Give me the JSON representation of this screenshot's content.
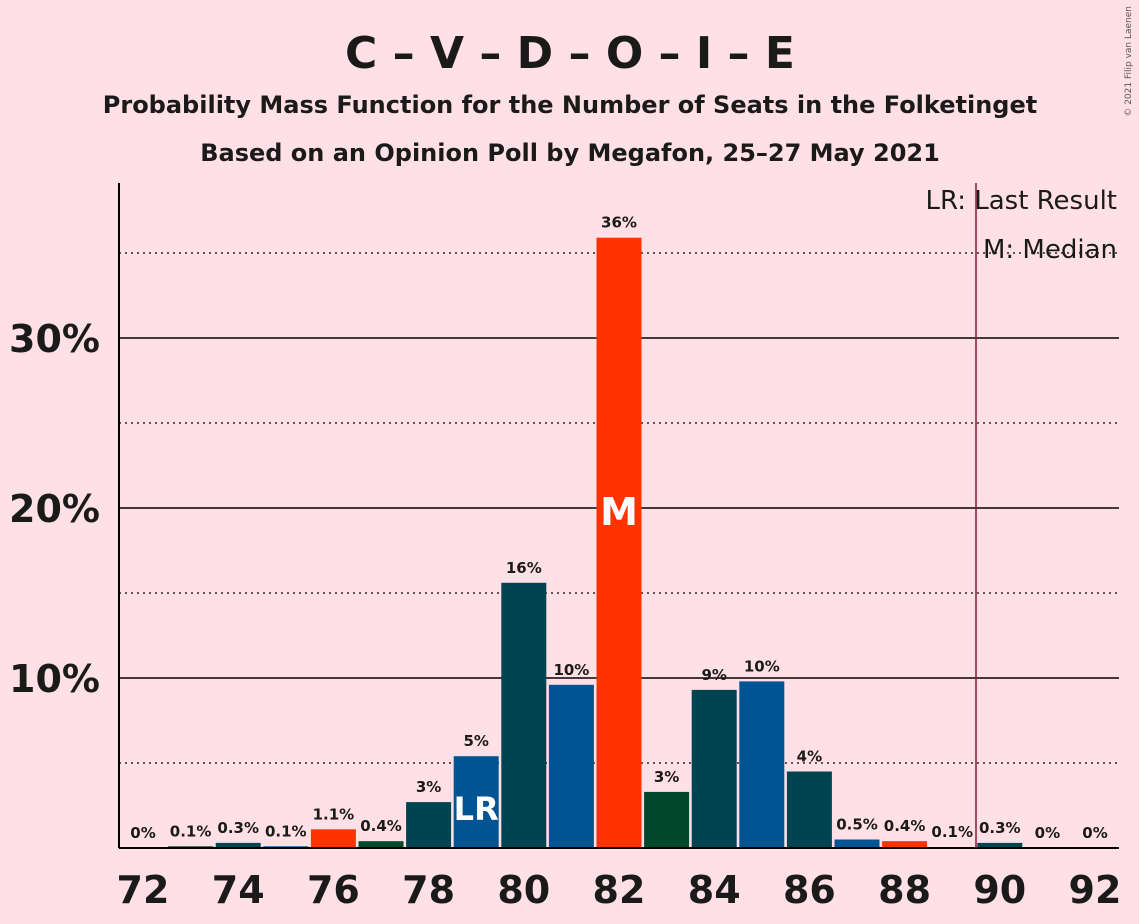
{
  "chart_data": {
    "type": "bar",
    "title": "C – V – D – O – I – E",
    "subtitle": "Probability Mass Function for the Number of Seats in the Folketinget",
    "subtitle2": "Based on an Opinion Poll by Megafon, 25–27 May 2021",
    "copyright": "© 2021 Filip van Laenen",
    "xlabel": "",
    "ylabel": "",
    "ylim": [
      0,
      39
    ],
    "y_ticks": [
      10,
      20,
      30
    ],
    "y_tick_labels": [
      "10%",
      "20%",
      "30%"
    ],
    "x_tick_labels": [
      "72",
      "74",
      "76",
      "78",
      "80",
      "82",
      "84",
      "86",
      "88",
      "90",
      "92"
    ],
    "categories": [
      72,
      73,
      74,
      75,
      76,
      77,
      78,
      79,
      80,
      81,
      82,
      83,
      84,
      85,
      86,
      87,
      88,
      89,
      90,
      91,
      92
    ],
    "values": [
      0,
      0.1,
      0.3,
      0.1,
      1.1,
      0.4,
      2.7,
      5.4,
      15.6,
      9.6,
      35.9,
      3.3,
      9.3,
      9.8,
      4.5,
      0.5,
      0.4,
      0.05,
      0.3,
      0,
      0
    ],
    "data_labels": [
      "0%",
      "0.1%",
      "0.3%",
      "0.1%",
      "1.1%",
      "0.4%",
      "3%",
      "5%",
      "16%",
      "10%",
      "36%",
      "3%",
      "9%",
      "10%",
      "4%",
      "0.5%",
      "0.4%",
      "0.1%",
      "0.3%",
      "0%",
      "0%"
    ],
    "colors": [
      "#FF3300",
      "#00482C",
      "#004450",
      "#005494",
      "#FF3300",
      "#00482C",
      "#004450",
      "#005494",
      "#004450",
      "#005494",
      "#FF3300",
      "#00482C",
      "#004450",
      "#005494",
      "#004450",
      "#005494",
      "#FF3300",
      "#00482C",
      "#004450",
      "#005494",
      "#FF3300"
    ],
    "last_result": 90,
    "median": 82,
    "lr_bar": 79,
    "lr_bar_label": "LR",
    "median_bar_label": "M",
    "legend": {
      "last_result": "LR: Last Result",
      "median": "M: Median",
      "placement": "top-right"
    },
    "grid": true
  }
}
